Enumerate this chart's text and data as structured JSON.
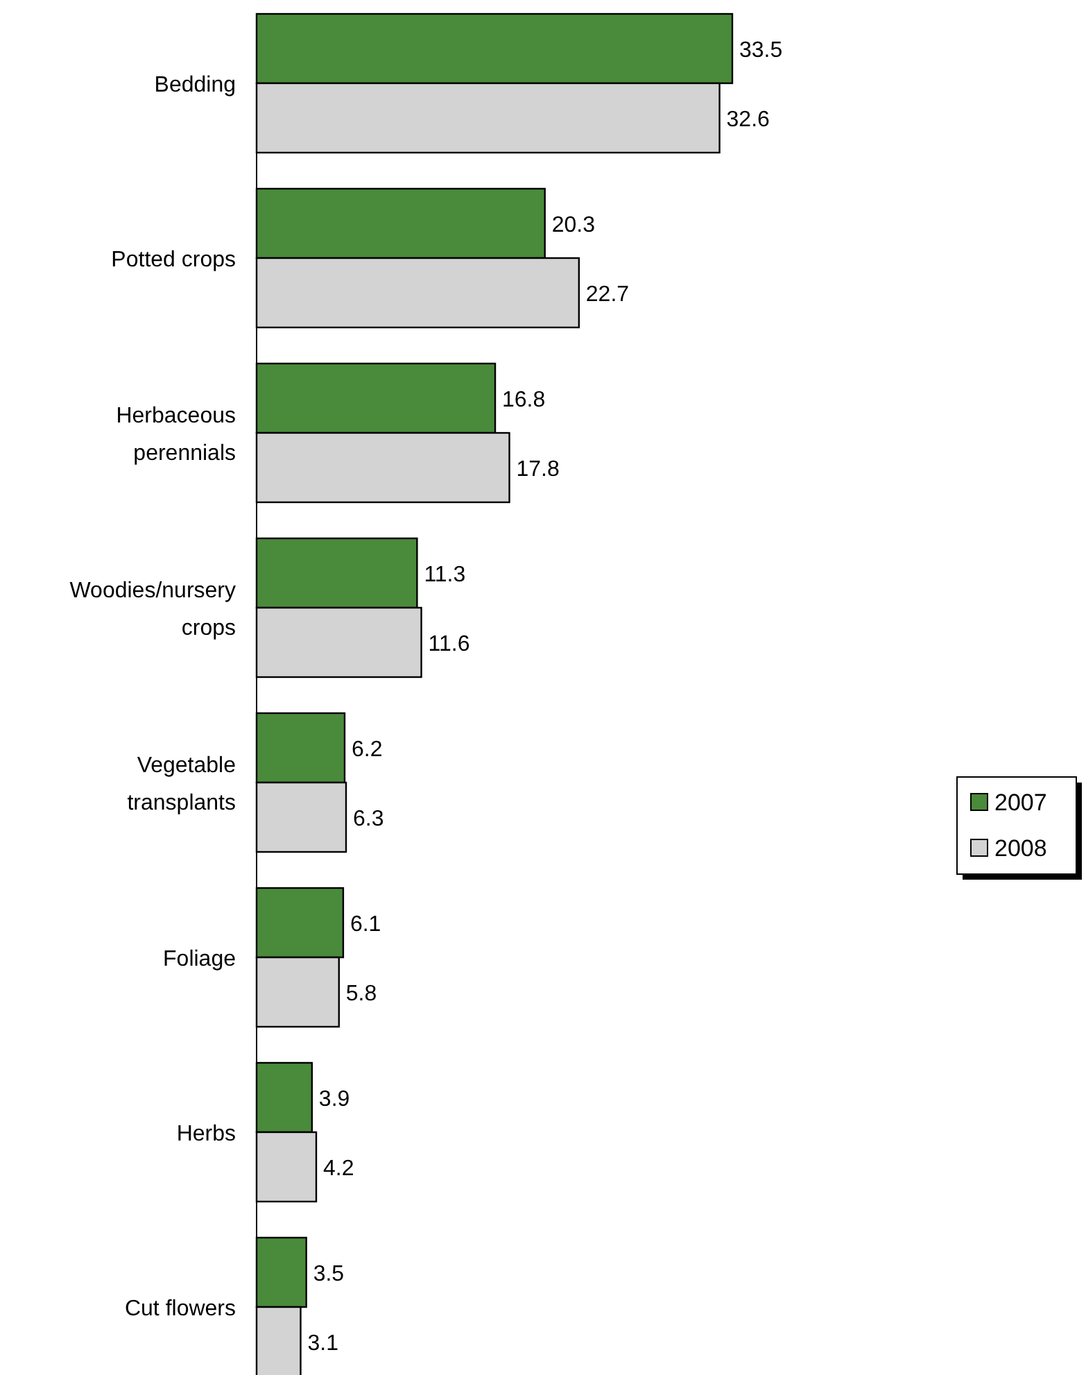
{
  "chart_data": {
    "type": "bar",
    "orientation": "horizontal",
    "data_labels": true,
    "legend": "right",
    "categories": [
      "Bedding",
      "Potted crops",
      "Herbaceous perennials",
      "Woodies/nursery crops",
      "Vegetable transplants",
      "Foliage",
      "Herbs",
      "Cut flowers"
    ],
    "series": [
      {
        "name": "2007",
        "color": "#4a8a3b",
        "values": [
          33.5,
          20.3,
          16.8,
          11.3,
          6.2,
          6.1,
          3.9,
          3.5
        ]
      },
      {
        "name": "2008",
        "color": "#d3d3d3",
        "values": [
          32.6,
          22.7,
          17.8,
          11.6,
          6.3,
          5.8,
          4.2,
          3.1
        ]
      }
    ]
  }
}
